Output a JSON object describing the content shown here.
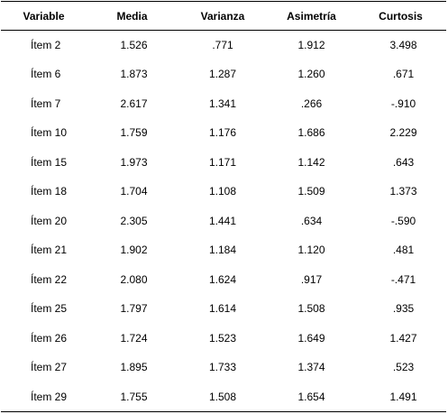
{
  "table": {
    "headers": [
      "Variable",
      "Media",
      "Varianza",
      "Asimetría",
      "Curtosis"
    ],
    "rows": [
      [
        "Ítem 2",
        "1.526",
        ".771",
        "1.912",
        "3.498"
      ],
      [
        "Ítem 6",
        "1.873",
        "1.287",
        "1.260",
        ".671"
      ],
      [
        "Ítem 7",
        "2.617",
        "1.341",
        ".266",
        "-.910"
      ],
      [
        "Ítem 10",
        "1.759",
        "1.176",
        "1.686",
        "2.229"
      ],
      [
        "Ítem 15",
        "1.973",
        "1.171",
        "1.142",
        ".643"
      ],
      [
        "Ítem 18",
        "1.704",
        "1.108",
        "1.509",
        "1.373"
      ],
      [
        "Ítem 20",
        "2.305",
        "1.441",
        ".634",
        "-.590"
      ],
      [
        "Ítem 21",
        "1.902",
        "1.184",
        "1.120",
        ".481"
      ],
      [
        "Ítem 22",
        "2.080",
        "1.624",
        ".917",
        "-.471"
      ],
      [
        "Ítem 25",
        "1.797",
        "1.614",
        "1.508",
        ".935"
      ],
      [
        "Ítem 26",
        "1.724",
        "1.523",
        "1.649",
        "1.427"
      ],
      [
        "Ítem 27",
        "1.895",
        "1.733",
        "1.374",
        ".523"
      ],
      [
        "Ítem 29",
        "1.755",
        "1.508",
        "1.654",
        "1.491"
      ]
    ]
  }
}
